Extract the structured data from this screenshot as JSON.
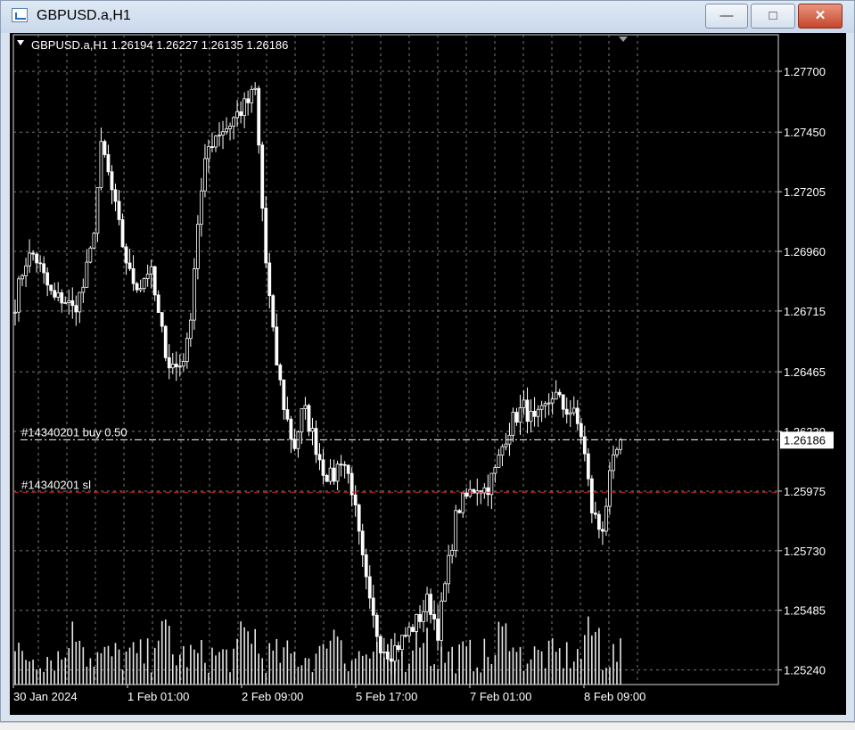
{
  "window": {
    "title": "GBPUSD.a,H1",
    "minimize_glyph": "—",
    "maximize_glyph": "□",
    "close_glyph": "✕"
  },
  "chart": {
    "symbol_line": "GBPUSD.a,H1  1.26194 1.26227 1.26135 1.26186",
    "current_price": "1.26186",
    "buy_label": "#14340201 buy 0.50",
    "sl_label": "#14340201 sl",
    "colors": {
      "background": "#000000",
      "grid": "#7a7a7a",
      "candle": "#ffffff",
      "buy_line": "#ffffff",
      "sl_line": "#d02020",
      "text": "#ffffff"
    }
  },
  "chart_data": {
    "type": "candlestick",
    "symbol": "GBPUSD.a",
    "timeframe": "H1",
    "last_ohlc": {
      "open": 1.26194,
      "high": 1.26227,
      "low": 1.26135,
      "close": 1.26186
    },
    "y_ticks": [
      "1.27700",
      "1.27450",
      "1.27205",
      "1.26960",
      "1.26715",
      "1.26465",
      "1.26220",
      "1.25975",
      "1.25730",
      "1.25485",
      "1.25240"
    ],
    "x_ticks": [
      "30 Jan 2024",
      "1 Feb 01:00",
      "2 Feb 09:00",
      "5 Feb 17:00",
      "7 Feb 01:00",
      "8 Feb 09:00"
    ],
    "ylim": [
      1.2518,
      1.2785
    ],
    "trade_lines": [
      {
        "label": "#14340201 buy 0.50",
        "price": 1.26186
      },
      {
        "label": "#14340201 sl",
        "price": 1.2597
      }
    ],
    "close_path": [
      1.2675,
      1.2692,
      1.2695,
      1.2685,
      1.2676,
      1.2677,
      1.2672,
      1.268,
      1.2698,
      1.274,
      1.2722,
      1.2702,
      1.2685,
      1.2682,
      1.269,
      1.2667,
      1.265,
      1.2648,
      1.2658,
      1.2708,
      1.2738,
      1.2745,
      1.2747,
      1.2752,
      1.2756,
      1.2762,
      1.2695,
      1.2655,
      1.2632,
      1.2615,
      1.2632,
      1.262,
      1.2607,
      1.2602,
      1.2612,
      1.26,
      1.2572,
      1.2548,
      1.2535,
      1.2531,
      1.2535,
      1.254,
      1.2545,
      1.2553,
      1.254,
      1.2565,
      1.259,
      1.2595,
      1.26,
      1.2598,
      1.2606,
      1.262,
      1.2628,
      1.2632,
      1.2625,
      1.263,
      1.2638,
      1.2632,
      1.263,
      1.262,
      1.259,
      1.258,
      1.2605,
      1.26186
    ]
  }
}
